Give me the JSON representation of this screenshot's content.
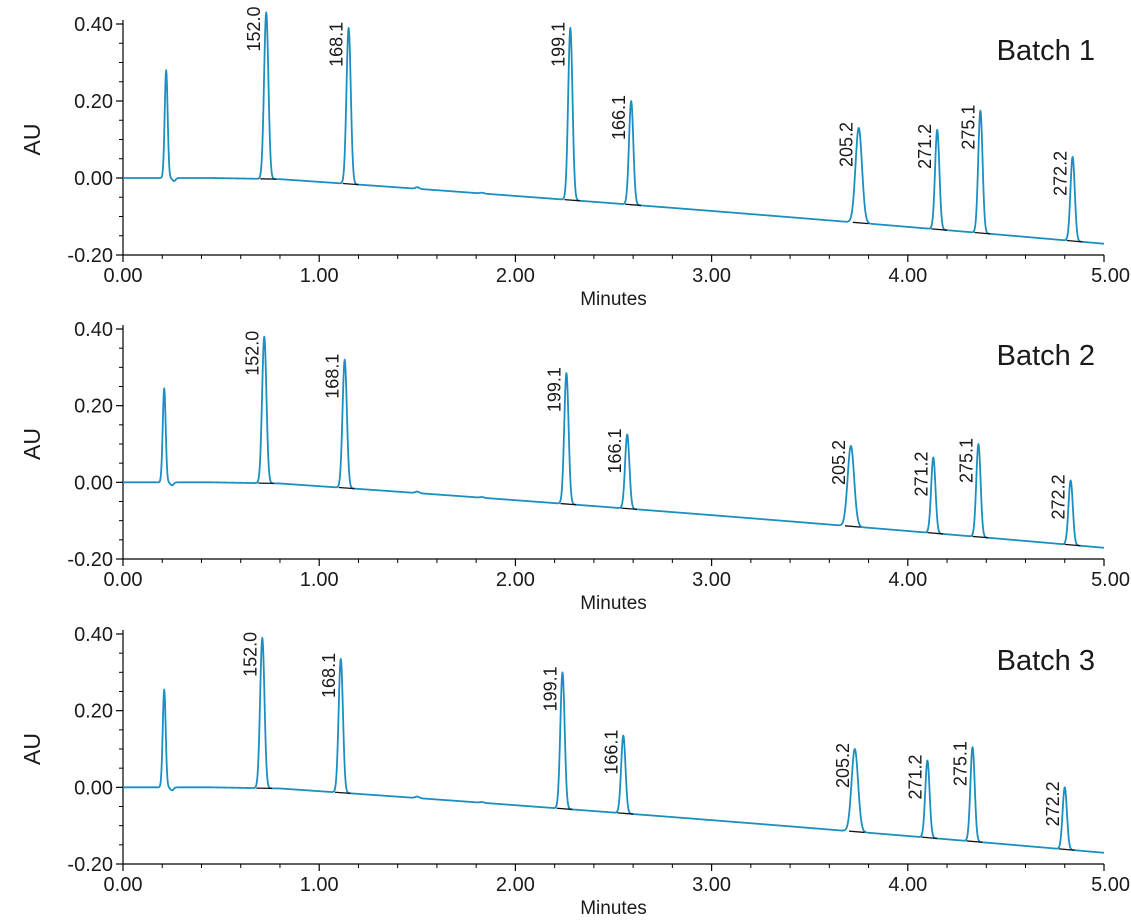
{
  "colors": {
    "trace": "#1a8fc2",
    "baseline": "#111111",
    "axis": "#000000"
  },
  "chart_data": [
    {
      "type": "line",
      "title": "Batch 1",
      "xlabel": "Minutes",
      "ylabel": "AU",
      "xlim": [
        0,
        5
      ],
      "ylim": [
        -0.2,
        0.4
      ],
      "x_ticks": [
        "0.00",
        "1.00",
        "2.00",
        "3.00",
        "4.00",
        "5.00"
      ],
      "y_ticks": [
        "-0.20",
        "0.00",
        "0.20",
        "0.40"
      ],
      "solvent_peak": {
        "x": 0.22,
        "y": 0.28
      },
      "peaks": [
        {
          "label": "152.0",
          "x": 0.73,
          "y": 0.43
        },
        {
          "label": "168.1",
          "x": 1.15,
          "y": 0.39
        },
        {
          "label": "199.1",
          "x": 2.28,
          "y": 0.39
        },
        {
          "label": "166.1",
          "x": 2.59,
          "y": 0.2
        },
        {
          "label": "205.2",
          "x": 3.75,
          "y": 0.13
        },
        {
          "label": "271.2",
          "x": 4.15,
          "y": 0.125
        },
        {
          "label": "275.1",
          "x": 4.37,
          "y": 0.175
        },
        {
          "label": "272.2",
          "x": 4.84,
          "y": 0.055
        }
      ]
    },
    {
      "type": "line",
      "title": "Batch 2",
      "xlabel": "Minutes",
      "ylabel": "AU",
      "xlim": [
        0,
        5
      ],
      "ylim": [
        -0.2,
        0.4
      ],
      "x_ticks": [
        "0.00",
        "1.00",
        "2.00",
        "3.00",
        "4.00",
        "5.00"
      ],
      "y_ticks": [
        "-0.20",
        "0.00",
        "0.20",
        "0.40"
      ],
      "solvent_peak": {
        "x": 0.21,
        "y": 0.245
      },
      "peaks": [
        {
          "label": "152.0",
          "x": 0.72,
          "y": 0.38
        },
        {
          "label": "168.1",
          "x": 1.13,
          "y": 0.32
        },
        {
          "label": "199.1",
          "x": 2.26,
          "y": 0.285
        },
        {
          "label": "166.1",
          "x": 2.57,
          "y": 0.125
        },
        {
          "label": "205.2",
          "x": 3.71,
          "y": 0.095
        },
        {
          "label": "271.2",
          "x": 4.13,
          "y": 0.065
        },
        {
          "label": "275.1",
          "x": 4.36,
          "y": 0.1
        },
        {
          "label": "272.2",
          "x": 4.83,
          "y": 0.005
        }
      ]
    },
    {
      "type": "line",
      "title": "Batch 3",
      "xlabel": "Minutes",
      "ylabel": "AU",
      "xlim": [
        0,
        5
      ],
      "ylim": [
        -0.2,
        0.4
      ],
      "x_ticks": [
        "0.00",
        "1.00",
        "2.00",
        "3.00",
        "4.00",
        "5.00"
      ],
      "y_ticks": [
        "-0.20",
        "0.00",
        "0.20",
        "0.40"
      ],
      "solvent_peak": {
        "x": 0.21,
        "y": 0.255
      },
      "peaks": [
        {
          "label": "152.0",
          "x": 0.71,
          "y": 0.39
        },
        {
          "label": "168.1",
          "x": 1.11,
          "y": 0.335
        },
        {
          "label": "199.1",
          "x": 2.24,
          "y": 0.3
        },
        {
          "label": "166.1",
          "x": 2.55,
          "y": 0.135
        },
        {
          "label": "205.2",
          "x": 3.73,
          "y": 0.1
        },
        {
          "label": "271.2",
          "x": 4.1,
          "y": 0.07
        },
        {
          "label": "275.1",
          "x": 4.33,
          "y": 0.105
        },
        {
          "label": "272.2",
          "x": 4.8,
          "y": 0.0
        }
      ]
    }
  ]
}
